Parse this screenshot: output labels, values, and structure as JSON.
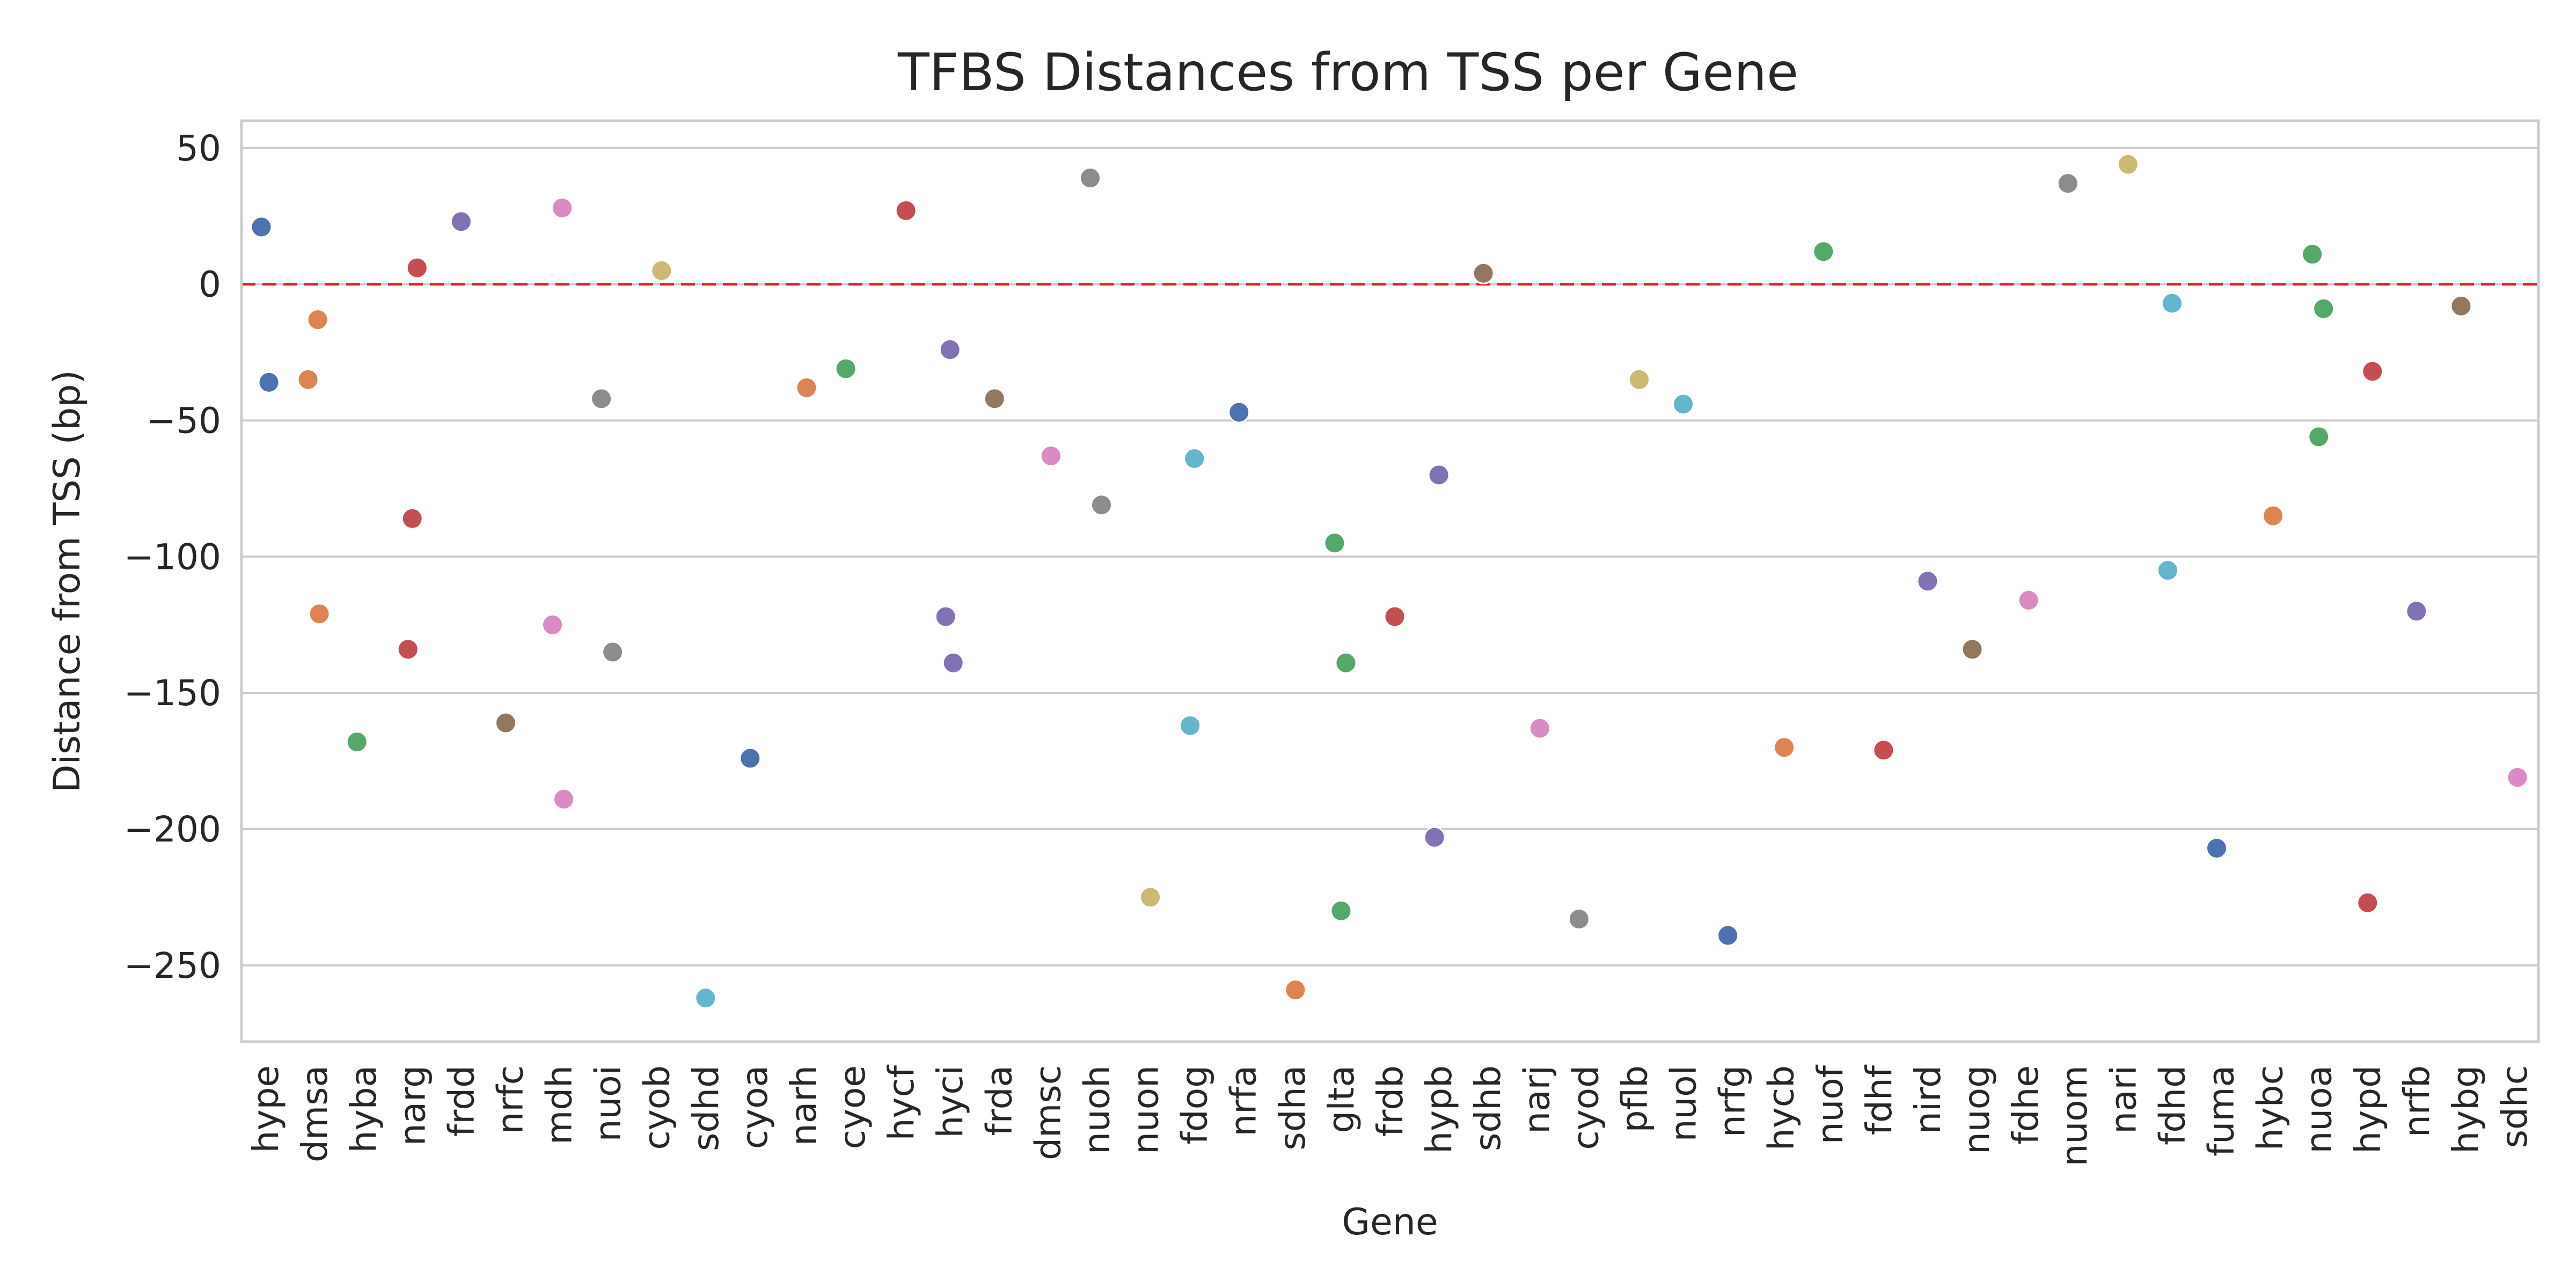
{
  "chart_data": {
    "type": "scatter",
    "title": "TFBS Distances from TSS per Gene",
    "xlabel": "Gene",
    "ylabel": "Distance from TSS (bp)",
    "ylim": [
      -278,
      60
    ],
    "yticks": [
      50,
      0,
      -50,
      -100,
      -150,
      -200,
      -250
    ],
    "ytick_labels": [
      "50",
      "0",
      "−50",
      "−100",
      "−150",
      "−200",
      "−250"
    ],
    "reference_line": {
      "y": 0,
      "color": "#e62222",
      "style": "dashed"
    },
    "grid": "horizontal",
    "palette": [
      "#4c72b0",
      "#dd8452",
      "#55a868",
      "#c44e52",
      "#8172b3",
      "#937860",
      "#da8bc3",
      "#8c8c8c",
      "#ccb974",
      "#64b5cd"
    ],
    "categories": [
      "hype",
      "dmsa",
      "hyba",
      "narg",
      "frdd",
      "nrfc",
      "mdh",
      "nuoi",
      "cyob",
      "sdhd",
      "cyoa",
      "narh",
      "cyoe",
      "hycf",
      "hyci",
      "frda",
      "dmsc",
      "nuoh",
      "nuon",
      "fdog",
      "nrfa",
      "sdha",
      "glta",
      "frdb",
      "hypb",
      "sdhb",
      "narj",
      "cyod",
      "pflb",
      "nuol",
      "nrfg",
      "hycb",
      "nuof",
      "fdhf",
      "nird",
      "nuog",
      "fdhe",
      "nuom",
      "nari",
      "fdhd",
      "fuma",
      "hybc",
      "nuoa",
      "hypd",
      "nrfb",
      "hybg",
      "sdhc"
    ],
    "values": [
      [
        21,
        -36
      ],
      [
        -13,
        -35,
        -121
      ],
      [
        -168
      ],
      [
        6,
        -86,
        -134
      ],
      [
        23
      ],
      [
        -161
      ],
      [
        28,
        -125,
        -189
      ],
      [
        -42,
        -135
      ],
      [
        5
      ],
      [
        -262
      ],
      [
        -174
      ],
      [
        -38
      ],
      [
        -31
      ],
      [
        27
      ],
      [
        -24,
        -122,
        -139
      ],
      [
        -42
      ],
      [
        -63
      ],
      [
        39,
        -81
      ],
      [
        -225
      ],
      [
        -64,
        -162
      ],
      [
        -47
      ],
      [
        -259
      ],
      [
        -95,
        -139,
        -230
      ],
      [
        -122
      ],
      [
        -70,
        -203
      ],
      [
        4
      ],
      [
        -163
      ],
      [
        -233
      ],
      [
        -35
      ],
      [
        -44
      ],
      [
        -239
      ],
      [
        -170
      ],
      [
        12
      ],
      [
        -171
      ],
      [
        -109
      ],
      [
        -134
      ],
      [
        -116
      ],
      [
        37
      ],
      [
        44
      ],
      [
        -7,
        -105
      ],
      [
        -207
      ],
      [
        -85
      ],
      [
        11,
        -9,
        -56
      ],
      [
        -32,
        -227
      ],
      [
        -120
      ],
      [
        -8
      ],
      [
        -181
      ]
    ]
  }
}
